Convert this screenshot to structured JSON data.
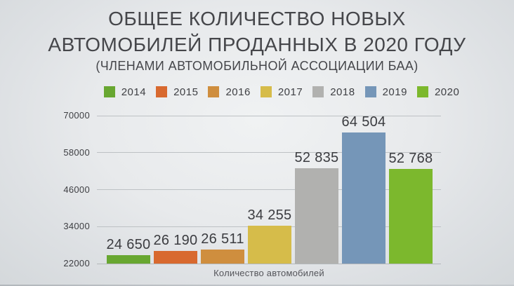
{
  "title": {
    "line1": "ОБЩЕЕ КОЛИЧЕСТВО НОВЫХ",
    "line2": "АВТОМОБИЛЕЙ ПРОДАННЫХ В 2020 ГОДУ",
    "subtitle": "(ЧЛЕНАМИ АВТОМОБИЛЬНОЙ АССОЦИАЦИИ БАА)"
  },
  "colors": {
    "background_center": "#f0f2f3",
    "background_edge": "#d4d8db",
    "title_text": "#45464a",
    "gridline": "#bdc1c4",
    "value_text": "#3b3c40"
  },
  "chart_data": {
    "type": "bar",
    "title": "ОБЩЕЕ КОЛИЧЕСТВО НОВЫХ АВТОМОБИЛЕЙ ПРОДАННЫХ В 2020 ГОДУ",
    "subtitle": "(ЧЛЕНАМИ АВТОМОБИЛЬНОЙ АССОЦИАЦИИ БАА)",
    "categories": [
      "2014",
      "2015",
      "2016",
      "2017",
      "2018",
      "2019",
      "2020"
    ],
    "values": [
      24650,
      26190,
      26511,
      34255,
      52835,
      64504,
      52768
    ],
    "value_labels": [
      "24 650",
      "26 190",
      "26 511",
      "34 255",
      "52 835",
      "64 504",
      "52 768"
    ],
    "colors": [
      "#68a731",
      "#d8692f",
      "#cf8e3e",
      "#d6bc4a",
      "#b1b1af",
      "#7596b8",
      "#7cb82d"
    ],
    "xlabel": "Количество автомобилей",
    "ylabel": "",
    "ylim": [
      22000,
      70000
    ],
    "yticks": [
      22000,
      34000,
      46000,
      58000,
      70000
    ],
    "ytick_labels": [
      "22000",
      "34000",
      "46000",
      "58000",
      "70000"
    ],
    "grid": true,
    "legend_position": "top"
  }
}
